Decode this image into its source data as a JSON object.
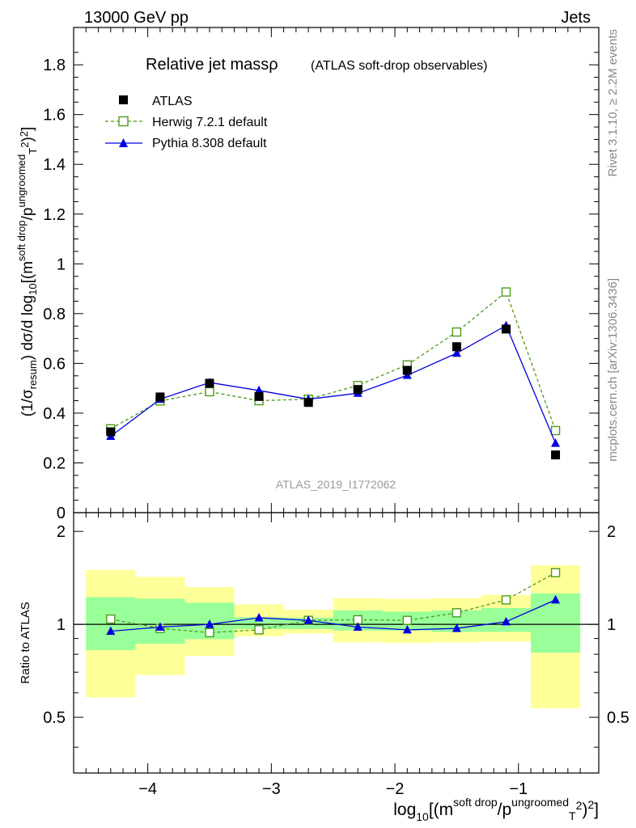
{
  "header": {
    "energy_label": "13000 GeV pp",
    "category_label": "Jets"
  },
  "side_labels": {
    "rivet": "Rivet 3.1.10, ≥ 2.2M events",
    "mcplots": "mcplots.cern.ch [arXiv:1306.3436]"
  },
  "chart_data": [
    {
      "type": "line",
      "title": "Relative jet massρ",
      "subtitle": "(ATLAS soft-drop observables)",
      "watermark": "ATLAS_2019_I1772062",
      "ylabel": "(1/σresum) dσ/d log10[(m^soft drop/pT^ungroomed)^2]",
      "ylim": [
        0,
        1.95
      ],
      "xlim": [
        -4.6,
        -0.35
      ],
      "yticks": [
        {
          "v": 0,
          "label": "0"
        },
        {
          "v": 0.2,
          "label": "0.2"
        },
        {
          "v": 0.4,
          "label": "0.4"
        },
        {
          "v": 0.6,
          "label": "0.6"
        },
        {
          "v": 0.8,
          "label": "0.8"
        },
        {
          "v": 1,
          "label": "1"
        },
        {
          "v": 1.2,
          "label": "1.2"
        },
        {
          "v": 1.4,
          "label": "1.4"
        },
        {
          "v": 1.6,
          "label": "1.6"
        },
        {
          "v": 1.8,
          "label": "1.8"
        }
      ],
      "x": [
        -4.3,
        -3.9,
        -3.5,
        -3.1,
        -2.7,
        -2.3,
        -1.9,
        -1.5,
        -1.1,
        -0.7
      ],
      "series": [
        {
          "name": "ATLAS",
          "color": "#000000",
          "marker": "square-filled",
          "line": "none",
          "values": [
            0.325,
            0.465,
            0.52,
            0.467,
            0.443,
            0.495,
            0.572,
            0.667,
            0.738,
            0.232
          ]
        },
        {
          "name": "Herwig 7.2.1 default",
          "color": "#4d9a1a",
          "marker": "square-open",
          "line": "dashed",
          "values": [
            0.337,
            0.449,
            0.486,
            0.45,
            0.456,
            0.511,
            0.594,
            0.726,
            0.887,
            0.33
          ]
        },
        {
          "name": "Pythia 8.308 default",
          "color": "#0000e0",
          "marker": "triangle-filled",
          "line": "solid",
          "values": [
            0.307,
            0.456,
            0.523,
            0.491,
            0.456,
            0.48,
            0.552,
            0.641,
            0.752,
            0.279
          ]
        }
      ],
      "legend": "top-left"
    },
    {
      "type": "line",
      "ylabel": "Ratio to ATLAS",
      "xlabel": "log10[(m^soft drop/pT^ungroomed)^2]",
      "ylim": [
        0.33,
        2.3
      ],
      "xlim": [
        -4.6,
        -0.35
      ],
      "xticks": [
        {
          "v": -4,
          "label": "−4"
        },
        {
          "v": -3,
          "label": "−3"
        },
        {
          "v": -2,
          "label": "−2"
        },
        {
          "v": -1,
          "label": "−1"
        }
      ],
      "yticks": [
        {
          "v": 0.5,
          "label": "0.5"
        },
        {
          "v": 1,
          "label": "1"
        },
        {
          "v": 2,
          "label": "2"
        }
      ],
      "bins": [
        {
          "lo": -4.5,
          "hi": -4.1,
          "stat": [
            0.825,
            1.225
          ],
          "tot": [
            0.58,
            1.5
          ]
        },
        {
          "lo": -4.1,
          "hi": -3.7,
          "stat": [
            0.865,
            1.21
          ],
          "tot": [
            0.685,
            1.425
          ]
        },
        {
          "lo": -3.7,
          "hi": -3.3,
          "stat": [
            0.895,
            1.175
          ],
          "tot": [
            0.79,
            1.32
          ]
        },
        {
          "lo": -3.3,
          "hi": -2.9,
          "stat": [
            0.965,
            1.055
          ],
          "tot": [
            0.915,
            1.16
          ]
        },
        {
          "lo": -2.9,
          "hi": -2.5,
          "stat": [
            0.965,
            1.05
          ],
          "tot": [
            0.935,
            1.115
          ]
        },
        {
          "lo": -2.5,
          "hi": -2.1,
          "stat": [
            0.955,
            1.11
          ],
          "tot": [
            0.875,
            1.215
          ]
        },
        {
          "lo": -2.1,
          "hi": -1.7,
          "stat": [
            0.955,
            1.1
          ],
          "tot": [
            0.87,
            1.21
          ]
        },
        {
          "lo": -1.7,
          "hi": -1.3,
          "stat": [
            0.945,
            1.11
          ],
          "tot": [
            0.875,
            1.215
          ]
        },
        {
          "lo": -1.3,
          "hi": -0.9,
          "stat": [
            0.945,
            1.13
          ],
          "tot": [
            0.88,
            1.245
          ]
        },
        {
          "lo": -0.9,
          "hi": -0.5,
          "stat": [
            0.81,
            1.26
          ],
          "tot": [
            0.535,
            1.555
          ]
        }
      ],
      "x": [
        -4.3,
        -3.9,
        -3.5,
        -3.1,
        -2.7,
        -2.3,
        -1.9,
        -1.5,
        -1.1,
        -0.7
      ],
      "series": [
        {
          "name": "Herwig 7.2.1 default",
          "color": "#4d9a1a",
          "marker": "square-open",
          "line": "dashed",
          "values": [
            1.04,
            0.97,
            0.94,
            0.96,
            1.03,
            1.035,
            1.03,
            1.09,
            1.2,
            1.47
          ]
        },
        {
          "name": "Pythia 8.308 default",
          "color": "#0000e0",
          "marker": "triangle-filled",
          "line": "solid",
          "values": [
            0.95,
            0.98,
            1.0,
            1.05,
            1.03,
            0.98,
            0.96,
            0.97,
            1.02,
            1.2
          ]
        }
      ],
      "colors": {
        "stat_band": "#99ff99",
        "tot_band": "#ffff99",
        "reference_line": "#000000"
      }
    }
  ]
}
